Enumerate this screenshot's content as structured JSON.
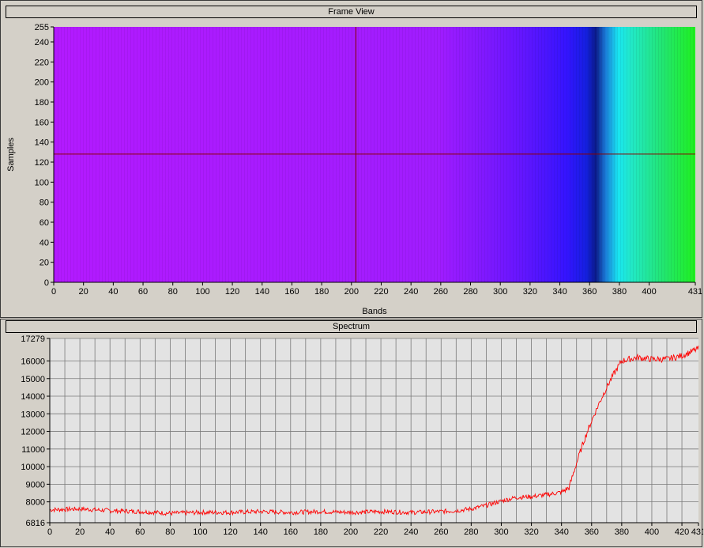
{
  "frame_view": {
    "title": "Frame View",
    "xlabel": "Bands",
    "ylabel": "Samples",
    "x_ticks": [
      0,
      20,
      40,
      60,
      80,
      100,
      120,
      140,
      160,
      180,
      200,
      220,
      240,
      260,
      280,
      300,
      320,
      340,
      360,
      380,
      400,
      431
    ],
    "y_ticks": [
      0,
      20,
      40,
      60,
      80,
      100,
      120,
      140,
      160,
      180,
      200,
      220,
      240,
      255
    ],
    "xlim": [
      0,
      431
    ],
    "ylim": [
      0,
      255
    ],
    "crosshair": {
      "band": 203,
      "sample": 128
    },
    "colors": {
      "magenta": "#b31aff",
      "blue": "#2b12ff",
      "dark_blue": "#0b1b8a",
      "cyan": "#19e6f0",
      "green": "#20f020",
      "crosshair": "#8b0000"
    }
  },
  "spectrum": {
    "title": "Spectrum",
    "line_color": "#ff0000",
    "grid_color": "#7a7a7a",
    "background": "#e3e3e3"
  },
  "chart_data": {
    "type": "line",
    "title": "Spectrum",
    "xlabel": "",
    "ylabel": "",
    "xlim": [
      0,
      431
    ],
    "ylim": [
      6816,
      17279
    ],
    "x_ticks": [
      0,
      20,
      40,
      60,
      80,
      100,
      120,
      140,
      160,
      180,
      200,
      220,
      240,
      260,
      280,
      300,
      320,
      340,
      360,
      380,
      400,
      420,
      431
    ],
    "y_ticks": [
      6816,
      8000,
      9000,
      10000,
      11000,
      12000,
      13000,
      14000,
      15000,
      16000,
      17279
    ],
    "grid": true,
    "series": [
      {
        "x": [
          0,
          20,
          40,
          60,
          80,
          100,
          120,
          140,
          160,
          180,
          200,
          220,
          240,
          260,
          270,
          280,
          290,
          300,
          310,
          320,
          330,
          340,
          345,
          350,
          355,
          360,
          365,
          370,
          375,
          380,
          390,
          400,
          410,
          420,
          431
        ],
        "values": [
          7550,
          7600,
          7500,
          7450,
          7350,
          7400,
          7400,
          7450,
          7400,
          7450,
          7400,
          7450,
          7400,
          7450,
          7500,
          7600,
          7800,
          8050,
          8250,
          8300,
          8400,
          8550,
          8800,
          10200,
          11500,
          12600,
          13600,
          14500,
          15300,
          16000,
          16200,
          16100,
          16100,
          16300,
          16700
        ]
      }
    ]
  }
}
